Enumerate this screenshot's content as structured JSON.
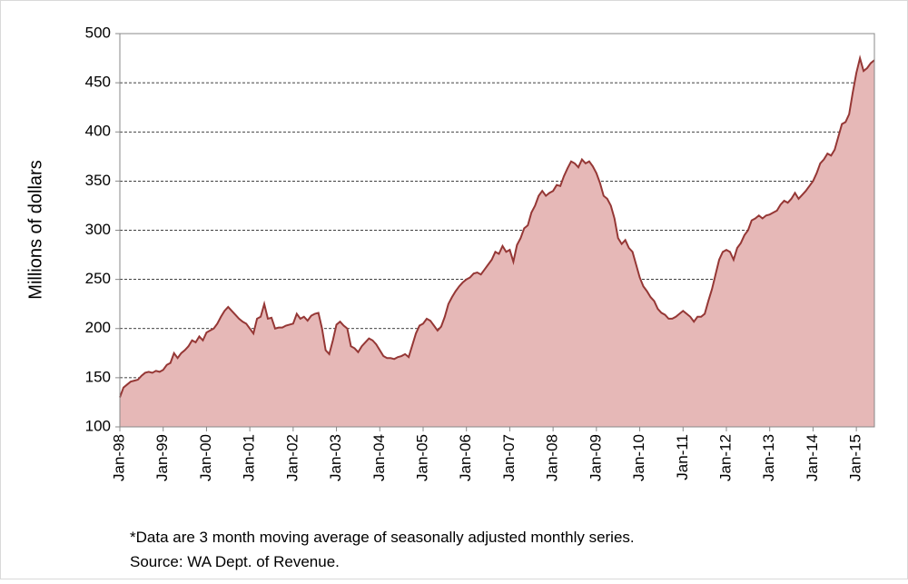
{
  "chart_data": {
    "type": "area",
    "ylabel": "Millions of dollars",
    "footnote": [
      "*Data are 3 month moving average of  seasonally adjusted monthly series.",
      "Source: WA Dept. of Revenue."
    ],
    "fill_color": "#e6b8b7",
    "line_color": "#953735",
    "ylim": [
      100,
      500
    ],
    "yticks": [
      100,
      150,
      200,
      250,
      300,
      350,
      400,
      450,
      500
    ],
    "grid": true,
    "categories": [
      "Jan-98",
      null,
      null,
      null,
      null,
      null,
      null,
      null,
      null,
      null,
      null,
      null,
      "Jan-99",
      null,
      null,
      null,
      null,
      null,
      null,
      null,
      null,
      null,
      null,
      null,
      "Jan-00",
      null,
      null,
      null,
      null,
      null,
      null,
      null,
      null,
      null,
      null,
      null,
      "Jan-01",
      null,
      null,
      null,
      null,
      null,
      null,
      null,
      null,
      null,
      null,
      null,
      "Jan-02",
      null,
      null,
      null,
      null,
      null,
      null,
      null,
      null,
      null,
      null,
      null,
      "Jan-03",
      null,
      null,
      null,
      null,
      null,
      null,
      null,
      null,
      null,
      null,
      null,
      "Jan-04",
      null,
      null,
      null,
      null,
      null,
      null,
      null,
      null,
      null,
      null,
      null,
      "Jan-05",
      null,
      null,
      null,
      null,
      null,
      null,
      null,
      null,
      null,
      null,
      null,
      "Jan-06",
      null,
      null,
      null,
      null,
      null,
      null,
      null,
      null,
      null,
      null,
      null,
      "Jan-07",
      null,
      null,
      null,
      null,
      null,
      null,
      null,
      null,
      null,
      null,
      null,
      "Jan-08",
      null,
      null,
      null,
      null,
      null,
      null,
      null,
      null,
      null,
      null,
      null,
      "Jan-09",
      null,
      null,
      null,
      null,
      null,
      null,
      null,
      null,
      null,
      null,
      null,
      "Jan-10",
      null,
      null,
      null,
      null,
      null,
      null,
      null,
      null,
      null,
      null,
      null,
      "Jan-11",
      null,
      null,
      null,
      null,
      null,
      null,
      null,
      null,
      null,
      null,
      null,
      "Jan-12",
      null,
      null,
      null,
      null,
      null,
      null,
      null,
      null,
      null,
      null,
      null,
      "Jan-13",
      null,
      null,
      null,
      null,
      null,
      null,
      null,
      null,
      null,
      null,
      null,
      "Jan-14",
      null,
      null,
      null,
      null,
      null,
      null,
      null,
      null,
      null,
      null,
      null,
      "Jan-15",
      null,
      null,
      null,
      null,
      null
    ],
    "values": [
      130,
      140,
      143,
      146,
      147,
      148,
      152,
      155,
      156,
      155,
      157,
      156,
      158,
      163,
      165,
      175,
      170,
      175,
      178,
      182,
      188,
      186,
      192,
      188,
      196,
      198,
      200,
      205,
      212,
      218,
      222,
      218,
      214,
      210,
      207,
      205,
      200,
      195,
      210,
      212,
      225,
      210,
      211,
      200,
      201,
      201,
      203,
      204,
      205,
      215,
      210,
      212,
      208,
      213,
      215,
      216,
      200,
      178,
      174,
      188,
      204,
      207,
      203,
      200,
      182,
      180,
      176,
      182,
      186,
      190,
      188,
      184,
      178,
      172,
      170,
      170,
      169,
      171,
      172,
      174,
      171,
      183,
      195,
      203,
      205,
      210,
      208,
      203,
      198,
      202,
      212,
      225,
      232,
      238,
      243,
      247,
      250,
      252,
      256,
      257,
      255,
      260,
      265,
      270,
      278,
      276,
      284,
      278,
      280,
      268,
      285,
      292,
      302,
      305,
      318,
      325,
      335,
      340,
      335,
      338,
      340,
      346,
      345,
      355,
      363,
      370,
      368,
      364,
      372,
      368,
      370,
      365,
      358,
      348,
      335,
      332,
      325,
      312,
      292,
      286,
      290,
      282,
      278,
      265,
      252,
      243,
      238,
      232,
      228,
      220,
      216,
      214,
      210,
      210,
      212,
      215,
      218,
      215,
      212,
      207,
      212,
      212,
      215,
      228,
      240,
      255,
      270,
      278,
      280,
      278,
      270,
      282,
      287,
      295,
      300,
      310,
      312,
      315,
      312,
      315,
      316,
      318,
      320,
      326,
      330,
      328,
      332,
      338,
      332,
      336,
      340,
      345,
      350,
      358,
      368,
      372,
      378,
      376,
      382,
      395,
      408,
      410,
      418,
      440,
      460,
      475,
      462,
      465,
      470,
      473
    ]
  }
}
